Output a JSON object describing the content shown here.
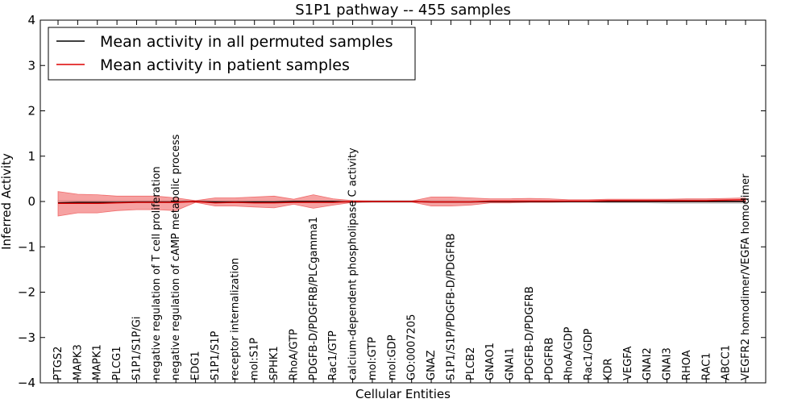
{
  "chart_data": {
    "type": "line",
    "title": "S1P1 pathway -- 455 samples",
    "xlabel": "Cellular Entities",
    "ylabel": "Inferred Activity",
    "ylim": [
      -4,
      4
    ],
    "yticks": [
      -4,
      -3,
      -2,
      -1,
      0,
      1,
      2,
      3,
      4
    ],
    "ytick_labels": [
      "−4",
      "−3",
      "−2",
      "−1",
      "0",
      "1",
      "2",
      "3",
      "4"
    ],
    "legend_position": "top-left",
    "categories": [
      "PTGS2",
      "MAPK3",
      "MAPK1",
      "PLCG1",
      "S1P1/S1P/Gi",
      "negative regulation of T cell proliferation",
      "negative regulation of cAMP metabolic process",
      "EDG1",
      "S1P1/S1P",
      "receptor internalization",
      "mol:S1P",
      "SPHK1",
      "RhoA/GTP",
      "PDGFB-D/PDGFRB/PLCgamma1",
      "Rac1/GTP",
      "calcium-dependent phospholipase C activity",
      "mol:GTP",
      "mol:GDP",
      "GO:0007205",
      "GNAZ",
      "S1P1/S1P/PDGFB-D/PDGFRB",
      "PLCB2",
      "GNAO1",
      "GNAI1",
      "PDGFB-D/PDGFRB",
      "PDGFRB",
      "RhoA/GDP",
      "Rac1/GDP",
      "KDR",
      "VEGFA",
      "GNAI2",
      "GNAI3",
      "RHOA",
      "RAC1",
      "ABCC1",
      "VEGFR2 homodimer/VEGFA homodimer"
    ],
    "series": [
      {
        "name": "Mean activity in all permuted samples",
        "color": "#000000",
        "values": [
          -0.03,
          -0.02,
          -0.02,
          -0.02,
          -0.01,
          -0.01,
          -0.01,
          0.0,
          -0.01,
          -0.01,
          -0.01,
          -0.01,
          0.0,
          0.0,
          0.0,
          -0.01,
          0.0,
          0.0,
          0.0,
          -0.01,
          -0.01,
          -0.01,
          0.0,
          0.0,
          0.0,
          0.0,
          0.0,
          0.0,
          0.0,
          0.0,
          0.0,
          0.0,
          0.0,
          0.0,
          0.0,
          0.0
        ],
        "band_lower": [
          -0.02,
          -0.02,
          -0.02,
          -0.02,
          -0.02,
          -0.02,
          -0.02,
          -0.02,
          -0.02,
          -0.02,
          -0.02,
          -0.02,
          -0.02,
          -0.02,
          -0.02,
          -0.02,
          -0.02,
          -0.02,
          -0.02,
          -0.02,
          -0.02,
          -0.02,
          -0.02,
          -0.02,
          -0.02,
          -0.02,
          -0.02,
          -0.02,
          -0.03,
          -0.03,
          -0.03,
          -0.04,
          -0.04,
          -0.04,
          -0.04,
          -0.04
        ],
        "band_upper": [
          0.02,
          0.02,
          0.02,
          0.02,
          0.02,
          0.02,
          0.02,
          0.02,
          0.02,
          0.02,
          0.02,
          0.02,
          0.02,
          0.02,
          0.02,
          0.02,
          0.02,
          0.02,
          0.02,
          0.02,
          0.02,
          0.02,
          0.02,
          0.02,
          0.02,
          0.02,
          0.02,
          0.02,
          0.03,
          0.03,
          0.03,
          0.04,
          0.04,
          0.04,
          0.04,
          0.04
        ],
        "band_color": "#bbbbbb"
      },
      {
        "name": "Mean activity in patient samples",
        "color": "#dd0000",
        "values": [
          -0.04,
          -0.04,
          -0.04,
          -0.03,
          -0.02,
          -0.02,
          -0.02,
          0.0,
          -0.03,
          -0.02,
          -0.03,
          -0.03,
          -0.02,
          -0.02,
          -0.02,
          0.0,
          0.0,
          0.0,
          0.0,
          -0.01,
          -0.01,
          -0.01,
          0.01,
          0.01,
          0.01,
          0.01,
          0.01,
          0.01,
          0.02,
          0.02,
          0.02,
          0.02,
          0.02,
          0.02,
          0.03,
          0.04
        ],
        "band_lower": [
          -0.32,
          -0.25,
          -0.25,
          -0.2,
          -0.18,
          -0.18,
          -0.2,
          -0.02,
          -0.1,
          -0.1,
          -0.12,
          -0.14,
          -0.06,
          -0.15,
          -0.08,
          -0.02,
          -0.01,
          -0.01,
          -0.01,
          -0.1,
          -0.1,
          -0.08,
          -0.03,
          -0.03,
          -0.02,
          -0.02,
          -0.01,
          -0.01,
          -0.01,
          -0.01,
          -0.01,
          -0.01,
          -0.01,
          -0.01,
          -0.01,
          -0.01
        ],
        "band_upper": [
          0.22,
          0.16,
          0.15,
          0.12,
          0.12,
          0.12,
          0.08,
          0.02,
          0.08,
          0.08,
          0.1,
          0.12,
          0.05,
          0.15,
          0.06,
          0.02,
          0.01,
          0.01,
          0.01,
          0.1,
          0.1,
          0.08,
          0.06,
          0.06,
          0.07,
          0.06,
          0.04,
          0.04,
          0.05,
          0.05,
          0.05,
          0.05,
          0.06,
          0.06,
          0.07,
          0.08
        ],
        "band_color": "#ee5555"
      }
    ]
  }
}
